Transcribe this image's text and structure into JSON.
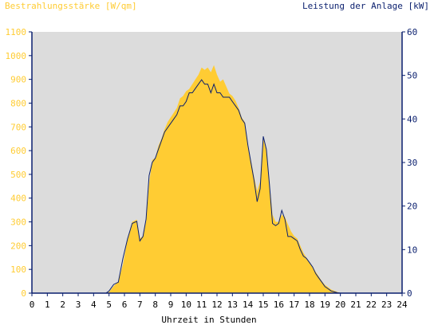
{
  "chart_data": {
    "type": "area",
    "title_left": "Bestrahlungsstärke [W/qm]",
    "title_right": "Leistung der Anlage [kW]",
    "xlabel": "Uhrzeit in Stunden",
    "xlim": [
      0,
      24
    ],
    "ylim_left": [
      0,
      1100
    ],
    "ylim_right": [
      0,
      60
    ],
    "x_ticks": [
      "0",
      "1",
      "2",
      "3",
      "4",
      "5",
      "6",
      "7",
      "8",
      "9",
      "10",
      "11",
      "12",
      "13",
      "14",
      "15",
      "16",
      "17",
      "18",
      "19",
      "20",
      "21",
      "22",
      "23",
      "24"
    ],
    "y_left_ticks": [
      "0",
      "100",
      "200",
      "300",
      "400",
      "500",
      "600",
      "700",
      "800",
      "900",
      "1000",
      "1100"
    ],
    "y_right_ticks": [
      "0",
      "10",
      "20",
      "30",
      "40",
      "50",
      "60"
    ],
    "colors": {
      "irradiance_fill": "#ffcc33",
      "power_line": "#0a1f6e",
      "plot_background": "#dcdcdc",
      "left_axis_text": "#ffcc33",
      "right_axis_text": "#0a1f6e"
    },
    "series": [
      {
        "axis": "left",
        "style": "filled-area",
        "x": [
          0,
          4.8,
          5.0,
          5.3,
          5.6,
          5.9,
          6.2,
          6.5,
          6.8,
          7.0,
          7.2,
          7.4,
          7.6,
          7.8,
          8.0,
          8.2,
          8.4,
          8.6,
          8.8,
          9.0,
          9.2,
          9.4,
          9.6,
          9.8,
          10.0,
          10.2,
          10.4,
          10.6,
          10.8,
          11.0,
          11.2,
          11.4,
          11.6,
          11.8,
          12.0,
          12.2,
          12.4,
          12.6,
          12.8,
          13.0,
          13.2,
          13.4,
          13.6,
          13.8,
          14.0,
          14.2,
          14.4,
          14.6,
          14.8,
          15.0,
          15.2,
          15.4,
          15.6,
          15.8,
          16.0,
          16.2,
          16.4,
          16.6,
          16.8,
          17.0,
          17.2,
          17.4,
          17.6,
          17.8,
          18.0,
          18.2,
          18.4,
          18.6,
          18.8,
          19.0,
          19.2,
          19.4,
          19.6,
          19.8,
          20.0,
          24
        ],
        "values": [
          0,
          0,
          5,
          30,
          50,
          120,
          230,
          300,
          310,
          230,
          240,
          300,
          460,
          560,
          570,
          620,
          650,
          690,
          720,
          740,
          760,
          780,
          820,
          830,
          850,
          860,
          880,
          900,
          920,
          950,
          940,
          950,
          930,
          960,
          920,
          890,
          900,
          870,
          840,
          830,
          810,
          780,
          740,
          720,
          620,
          560,
          490,
          430,
          470,
          650,
          600,
          470,
          330,
          300,
          300,
          330,
          320,
          290,
          260,
          240,
          230,
          200,
          170,
          150,
          130,
          110,
          90,
          70,
          50,
          35,
          25,
          15,
          10,
          5,
          0,
          0
        ]
      },
      {
        "axis": "right",
        "style": "line",
        "x": [
          0,
          4.8,
          5.0,
          5.3,
          5.6,
          5.9,
          6.2,
          6.5,
          6.8,
          7.0,
          7.2,
          7.4,
          7.6,
          7.8,
          8.0,
          8.2,
          8.4,
          8.6,
          8.8,
          9.0,
          9.2,
          9.4,
          9.6,
          9.8,
          10.0,
          10.2,
          10.4,
          10.6,
          10.8,
          11.0,
          11.2,
          11.4,
          11.6,
          11.8,
          12.0,
          12.2,
          12.4,
          12.6,
          12.8,
          13.0,
          13.2,
          13.4,
          13.6,
          13.8,
          14.0,
          14.2,
          14.4,
          14.6,
          14.8,
          15.0,
          15.2,
          15.4,
          15.6,
          15.8,
          16.0,
          16.2,
          16.4,
          16.6,
          16.8,
          17.0,
          17.2,
          17.4,
          17.6,
          17.8,
          18.0,
          18.2,
          18.4,
          18.6,
          18.8,
          19.0,
          19.2,
          19.4,
          19.6,
          19.8,
          20.0,
          24
        ],
        "values": [
          0,
          0,
          0.5,
          2,
          2.5,
          8,
          12.5,
          16,
          16.5,
          12,
          13,
          17,
          27,
          30,
          31,
          33,
          35,
          37,
          38,
          39,
          40,
          41,
          43,
          43,
          44,
          46,
          46,
          47,
          48,
          49,
          48,
          48,
          46,
          48,
          46,
          46,
          45,
          45,
          45,
          44,
          43,
          42,
          40,
          39,
          34,
          30,
          26,
          21,
          24,
          36,
          33,
          25,
          16,
          15.5,
          16,
          19,
          17,
          13,
          13,
          12.5,
          12,
          10,
          8.5,
          8,
          7,
          6,
          4.5,
          3.5,
          2.5,
          1.5,
          1,
          0.5,
          0.3,
          0.1,
          0,
          0
        ]
      }
    ]
  }
}
